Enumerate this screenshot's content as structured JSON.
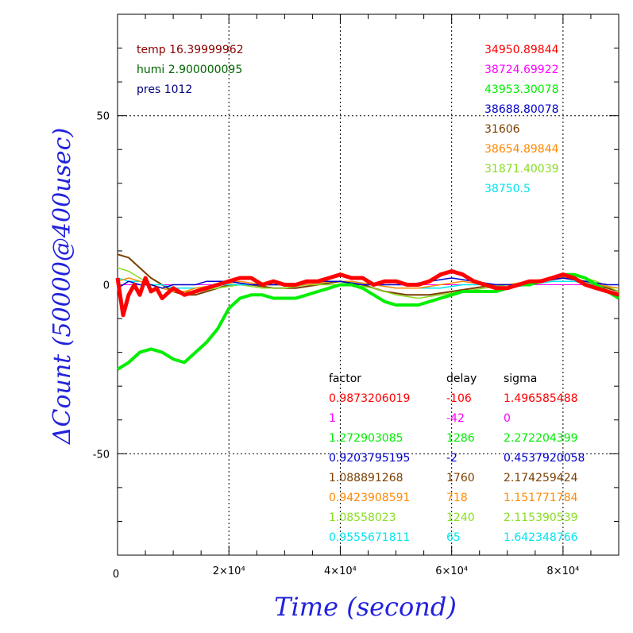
{
  "chart_data": {
    "type": "line",
    "xlabel": "Time (second)",
    "ylabel": "ΔCount (50000@400usec)",
    "xlim": [
      0,
      90000
    ],
    "ylim": [
      -80,
      80
    ],
    "x_ticks": [
      {
        "value": 0,
        "label": "0"
      },
      {
        "value": 20000,
        "label": "2×10⁴"
      },
      {
        "value": 40000,
        "label": "4×10⁴"
      },
      {
        "value": 60000,
        "label": "6×10⁴"
      },
      {
        "value": 80000,
        "label": "8×10⁴"
      }
    ],
    "y_ticks": [
      {
        "value": 50,
        "label": "50"
      },
      {
        "value": 0,
        "label": "0"
      },
      {
        "value": -50,
        "label": "-50"
      }
    ],
    "grid": true,
    "env": [
      {
        "text": "temp 16.39999962",
        "color": "#8b0000"
      },
      {
        "text": "humi 2.900000095",
        "color": "#006400"
      },
      {
        "text": "pres 1012",
        "color": "#000080"
      }
    ],
    "series_headers": {
      "factor": "factor",
      "delay": "delay",
      "sigma": "sigma"
    },
    "series": [
      {
        "color": "#ff0000",
        "base": "34950.89844",
        "factor": "0.9873206019",
        "delay": "-106",
        "sigma": "1.496585488",
        "width": 5,
        "points": [
          [
            0,
            2
          ],
          [
            1000,
            -9
          ],
          [
            2000,
            -3
          ],
          [
            3000,
            0
          ],
          [
            4000,
            -3
          ],
          [
            5000,
            2
          ],
          [
            6000,
            -2
          ],
          [
            7000,
            -1
          ],
          [
            8000,
            -4
          ],
          [
            10000,
            -1
          ],
          [
            12000,
            -3
          ],
          [
            14000,
            -2
          ],
          [
            16000,
            -1
          ],
          [
            18000,
            0
          ],
          [
            20000,
            1
          ],
          [
            22000,
            2
          ],
          [
            24000,
            2
          ],
          [
            26000,
            0
          ],
          [
            28000,
            1
          ],
          [
            30000,
            0
          ],
          [
            32000,
            0
          ],
          [
            34000,
            1
          ],
          [
            36000,
            1
          ],
          [
            38000,
            2
          ],
          [
            40000,
            3
          ],
          [
            42000,
            2
          ],
          [
            44000,
            2
          ],
          [
            46000,
            0
          ],
          [
            48000,
            1
          ],
          [
            50000,
            1
          ],
          [
            52000,
            0
          ],
          [
            54000,
            0
          ],
          [
            56000,
            1
          ],
          [
            58000,
            3
          ],
          [
            60000,
            4
          ],
          [
            62000,
            3
          ],
          [
            64000,
            1
          ],
          [
            66000,
            0
          ],
          [
            68000,
            -1
          ],
          [
            70000,
            -1
          ],
          [
            72000,
            0
          ],
          [
            74000,
            1
          ],
          [
            76000,
            1
          ],
          [
            78000,
            2
          ],
          [
            80000,
            3
          ],
          [
            82000,
            2
          ],
          [
            84000,
            0
          ],
          [
            86000,
            -1
          ],
          [
            88000,
            -2
          ],
          [
            90000,
            -3
          ]
        ]
      },
      {
        "color": "#ff00ff",
        "base": "38724.69922",
        "factor": "1",
        "delay": "-42",
        "sigma": "0",
        "width": 1,
        "points": [
          [
            0,
            0
          ],
          [
            5000,
            0
          ],
          [
            10000,
            0
          ],
          [
            20000,
            0
          ],
          [
            30000,
            0
          ],
          [
            40000,
            0
          ],
          [
            50000,
            0
          ],
          [
            60000,
            0
          ],
          [
            70000,
            0
          ],
          [
            80000,
            0
          ],
          [
            90000,
            0
          ]
        ]
      },
      {
        "color": "#00ee00",
        "base": "43953.30078",
        "factor": "1.272903085",
        "delay": "1286",
        "sigma": "2.272204399",
        "width": 4,
        "points": [
          [
            0,
            -25
          ],
          [
            2000,
            -23
          ],
          [
            4000,
            -20
          ],
          [
            6000,
            -19
          ],
          [
            8000,
            -20
          ],
          [
            10000,
            -22
          ],
          [
            12000,
            -23
          ],
          [
            14000,
            -20
          ],
          [
            16000,
            -17
          ],
          [
            18000,
            -13
          ],
          [
            20000,
            -7
          ],
          [
            22000,
            -4
          ],
          [
            24000,
            -3
          ],
          [
            26000,
            -3
          ],
          [
            28000,
            -4
          ],
          [
            30000,
            -4
          ],
          [
            32000,
            -4
          ],
          [
            34000,
            -3
          ],
          [
            36000,
            -2
          ],
          [
            38000,
            -1
          ],
          [
            40000,
            0
          ],
          [
            42000,
            0
          ],
          [
            44000,
            -1
          ],
          [
            46000,
            -3
          ],
          [
            48000,
            -5
          ],
          [
            50000,
            -6
          ],
          [
            52000,
            -6
          ],
          [
            54000,
            -6
          ],
          [
            56000,
            -5
          ],
          [
            58000,
            -4
          ],
          [
            60000,
            -3
          ],
          [
            62000,
            -2
          ],
          [
            64000,
            -2
          ],
          [
            66000,
            -2
          ],
          [
            68000,
            -2
          ],
          [
            70000,
            -1
          ],
          [
            72000,
            0
          ],
          [
            74000,
            0
          ],
          [
            76000,
            1
          ],
          [
            78000,
            2
          ],
          [
            80000,
            3
          ],
          [
            82000,
            3
          ],
          [
            84000,
            2
          ],
          [
            86000,
            0
          ],
          [
            88000,
            -2
          ],
          [
            90000,
            -4
          ]
        ]
      },
      {
        "color": "#0000cc",
        "base": "38688.80078",
        "factor": "0.9203795195",
        "delay": "-2",
        "sigma": "0.4537920058",
        "width": 1.5,
        "points": [
          [
            0,
            -1
          ],
          [
            2000,
            1
          ],
          [
            4000,
            0
          ],
          [
            6000,
            0
          ],
          [
            8000,
            -1
          ],
          [
            10000,
            0
          ],
          [
            12000,
            0
          ],
          [
            14000,
            0
          ],
          [
            16000,
            1
          ],
          [
            20000,
            1
          ],
          [
            24000,
            0
          ],
          [
            28000,
            0
          ],
          [
            32000,
            0
          ],
          [
            36000,
            1
          ],
          [
            40000,
            1
          ],
          [
            44000,
            0
          ],
          [
            48000,
            0
          ],
          [
            52000,
            0
          ],
          [
            56000,
            1
          ],
          [
            60000,
            2
          ],
          [
            64000,
            1
          ],
          [
            68000,
            0
          ],
          [
            72000,
            0
          ],
          [
            76000,
            1
          ],
          [
            80000,
            2
          ],
          [
            84000,
            1
          ],
          [
            88000,
            0
          ],
          [
            90000,
            0
          ]
        ]
      },
      {
        "color": "#7b3f00",
        "base": "31606",
        "factor": "1.088891268",
        "delay": "1760",
        "sigma": "2.174259424",
        "width": 2,
        "points": [
          [
            0,
            9
          ],
          [
            2000,
            8
          ],
          [
            4000,
            5
          ],
          [
            6000,
            2
          ],
          [
            8000,
            0
          ],
          [
            10000,
            -2
          ],
          [
            12000,
            -3
          ],
          [
            14000,
            -3
          ],
          [
            16000,
            -2
          ],
          [
            18000,
            -1
          ],
          [
            20000,
            0
          ],
          [
            24000,
            0
          ],
          [
            28000,
            -1
          ],
          [
            32000,
            -1
          ],
          [
            36000,
            0
          ],
          [
            40000,
            1
          ],
          [
            44000,
            0
          ],
          [
            48000,
            -2
          ],
          [
            52000,
            -3
          ],
          [
            56000,
            -3
          ],
          [
            60000,
            -2
          ],
          [
            64000,
            -1
          ],
          [
            68000,
            0
          ],
          [
            72000,
            0
          ],
          [
            76000,
            1
          ],
          [
            80000,
            2
          ],
          [
            84000,
            1
          ],
          [
            88000,
            -1
          ],
          [
            90000,
            -2
          ]
        ]
      },
      {
        "color": "#ff8800",
        "base": "38654.89844",
        "factor": "0.9423908591",
        "delay": "718",
        "sigma": "1.151771784",
        "width": 1.5,
        "points": [
          [
            0,
            1
          ],
          [
            2000,
            2
          ],
          [
            4000,
            1
          ],
          [
            6000,
            0
          ],
          [
            8000,
            -1
          ],
          [
            10000,
            -2
          ],
          [
            12000,
            -2
          ],
          [
            14000,
            -1
          ],
          [
            18000,
            0
          ],
          [
            22000,
            1
          ],
          [
            26000,
            0
          ],
          [
            30000,
            0
          ],
          [
            34000,
            0
          ],
          [
            38000,
            1
          ],
          [
            42000,
            1
          ],
          [
            46000,
            0
          ],
          [
            50000,
            -1
          ],
          [
            54000,
            -1
          ],
          [
            58000,
            0
          ],
          [
            62000,
            1
          ],
          [
            66000,
            0
          ],
          [
            70000,
            0
          ],
          [
            74000,
            1
          ],
          [
            78000,
            2
          ],
          [
            82000,
            2
          ],
          [
            86000,
            0
          ],
          [
            90000,
            -1
          ]
        ]
      },
      {
        "color": "#88dd22",
        "base": "31871.40039",
        "factor": "1.08558023",
        "delay": "1240",
        "sigma": "2.115390539",
        "width": 1.5,
        "points": [
          [
            0,
            5
          ],
          [
            2000,
            4
          ],
          [
            4000,
            2
          ],
          [
            6000,
            0
          ],
          [
            8000,
            -1
          ],
          [
            10000,
            -2
          ],
          [
            14000,
            -2
          ],
          [
            18000,
            -1
          ],
          [
            22000,
            0
          ],
          [
            26000,
            -1
          ],
          [
            30000,
            -1
          ],
          [
            34000,
            0
          ],
          [
            38000,
            0
          ],
          [
            42000,
            0
          ],
          [
            46000,
            -1
          ],
          [
            50000,
            -3
          ],
          [
            54000,
            -4
          ],
          [
            58000,
            -3
          ],
          [
            62000,
            -2
          ],
          [
            66000,
            -1
          ],
          [
            70000,
            0
          ],
          [
            74000,
            0
          ],
          [
            78000,
            2
          ],
          [
            82000,
            3
          ],
          [
            86000,
            1
          ],
          [
            90000,
            -2
          ]
        ]
      },
      {
        "color": "#00e5ee",
        "base": "38750.5",
        "factor": "0.9555671811",
        "delay": "65",
        "sigma": "1.642348766",
        "width": 1.5,
        "points": [
          [
            0,
            2
          ],
          [
            2000,
            1
          ],
          [
            4000,
            1
          ],
          [
            6000,
            0
          ],
          [
            8000,
            0
          ],
          [
            10000,
            -1
          ],
          [
            14000,
            -1
          ],
          [
            18000,
            0
          ],
          [
            22000,
            0
          ],
          [
            26000,
            0
          ],
          [
            30000,
            0
          ],
          [
            34000,
            0
          ],
          [
            38000,
            1
          ],
          [
            42000,
            1
          ],
          [
            46000,
            0
          ],
          [
            50000,
            -1
          ],
          [
            54000,
            -1
          ],
          [
            58000,
            -1
          ],
          [
            62000,
            0
          ],
          [
            66000,
            0
          ],
          [
            70000,
            -1
          ],
          [
            74000,
            0
          ],
          [
            78000,
            1
          ],
          [
            82000,
            1
          ],
          [
            86000,
            0
          ],
          [
            90000,
            -1
          ]
        ]
      }
    ]
  }
}
